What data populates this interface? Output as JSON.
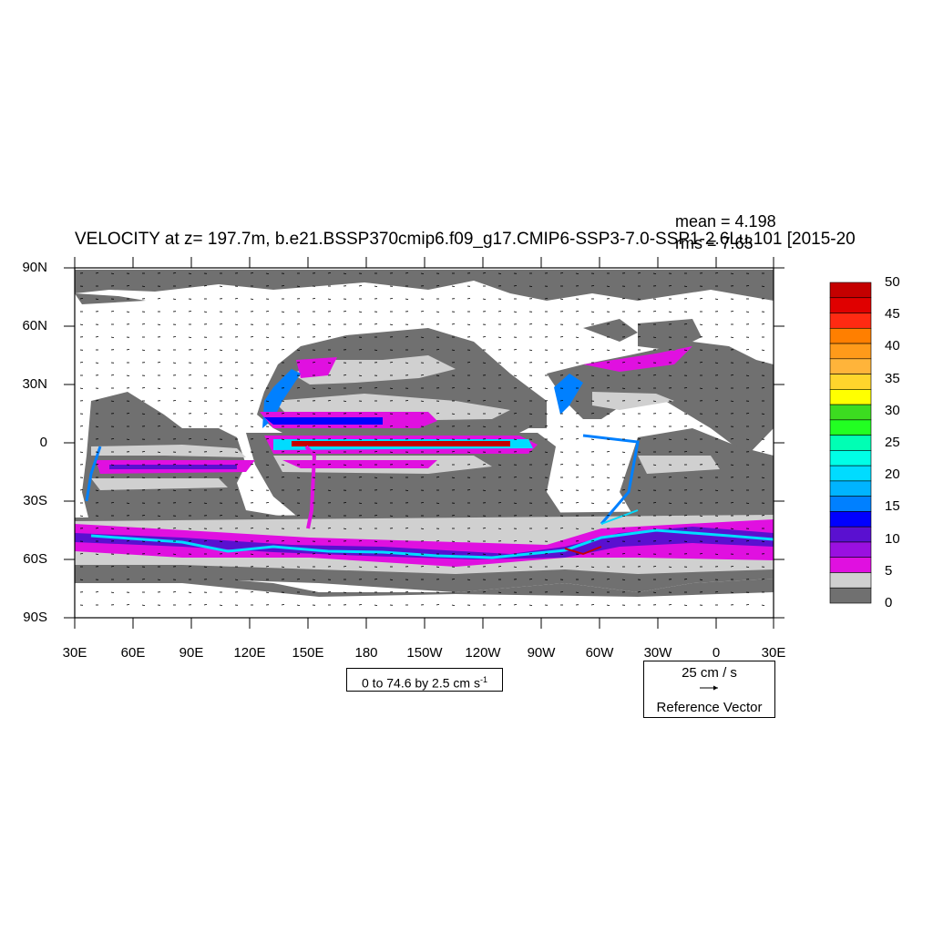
{
  "title": "VELOCITY at z= 197.7m, b.e21.BSSP370cmip6.f09_g17.CMIP6-SSP3-7.0-SSP1-2.6Lu.101 [2015-20",
  "stats": {
    "mean": "mean = 4.198",
    "rms": "rms = 7.63"
  },
  "lat_labels": [
    "90N",
    "60N",
    "30N",
    "0",
    "30S",
    "60S",
    "90S"
  ],
  "lon_labels": [
    "30E",
    "60E",
    "90E",
    "120E",
    "150E",
    "180",
    "150W",
    "120W",
    "90W",
    "60W",
    "30W",
    "0",
    "30E"
  ],
  "contour_info": {
    "text": "0 to 74.6 by 2.5 cm s",
    "exponent": "-1"
  },
  "reference_vector": {
    "magnitude": "25 cm / s",
    "label": "Reference Vector"
  },
  "colorbar": {
    "labels": [
      "50",
      "45",
      "40",
      "35",
      "30",
      "25",
      "20",
      "15",
      "10",
      "5",
      "0"
    ],
    "colors": [
      "#c40000",
      "#e00000",
      "#ff2a12",
      "#ff7f00",
      "#ff9a1a",
      "#ffb43a",
      "#ffd52c",
      "#ffff00",
      "#3cdc20",
      "#22ff22",
      "#00ffb4",
      "#00ffe6",
      "#00dcff",
      "#00b4ff",
      "#0080ff",
      "#0000ff",
      "#5a10d0",
      "#9a10e0",
      "#e010e0",
      "#d0d0d0",
      "#707070"
    ]
  },
  "palette": {
    "ocean_low": "#707070",
    "ocean_mid": "#d0d0d0",
    "magenta": "#e010e0",
    "blue": "#0080ff",
    "cyan": "#00dcff",
    "land": "#ffffff"
  }
}
